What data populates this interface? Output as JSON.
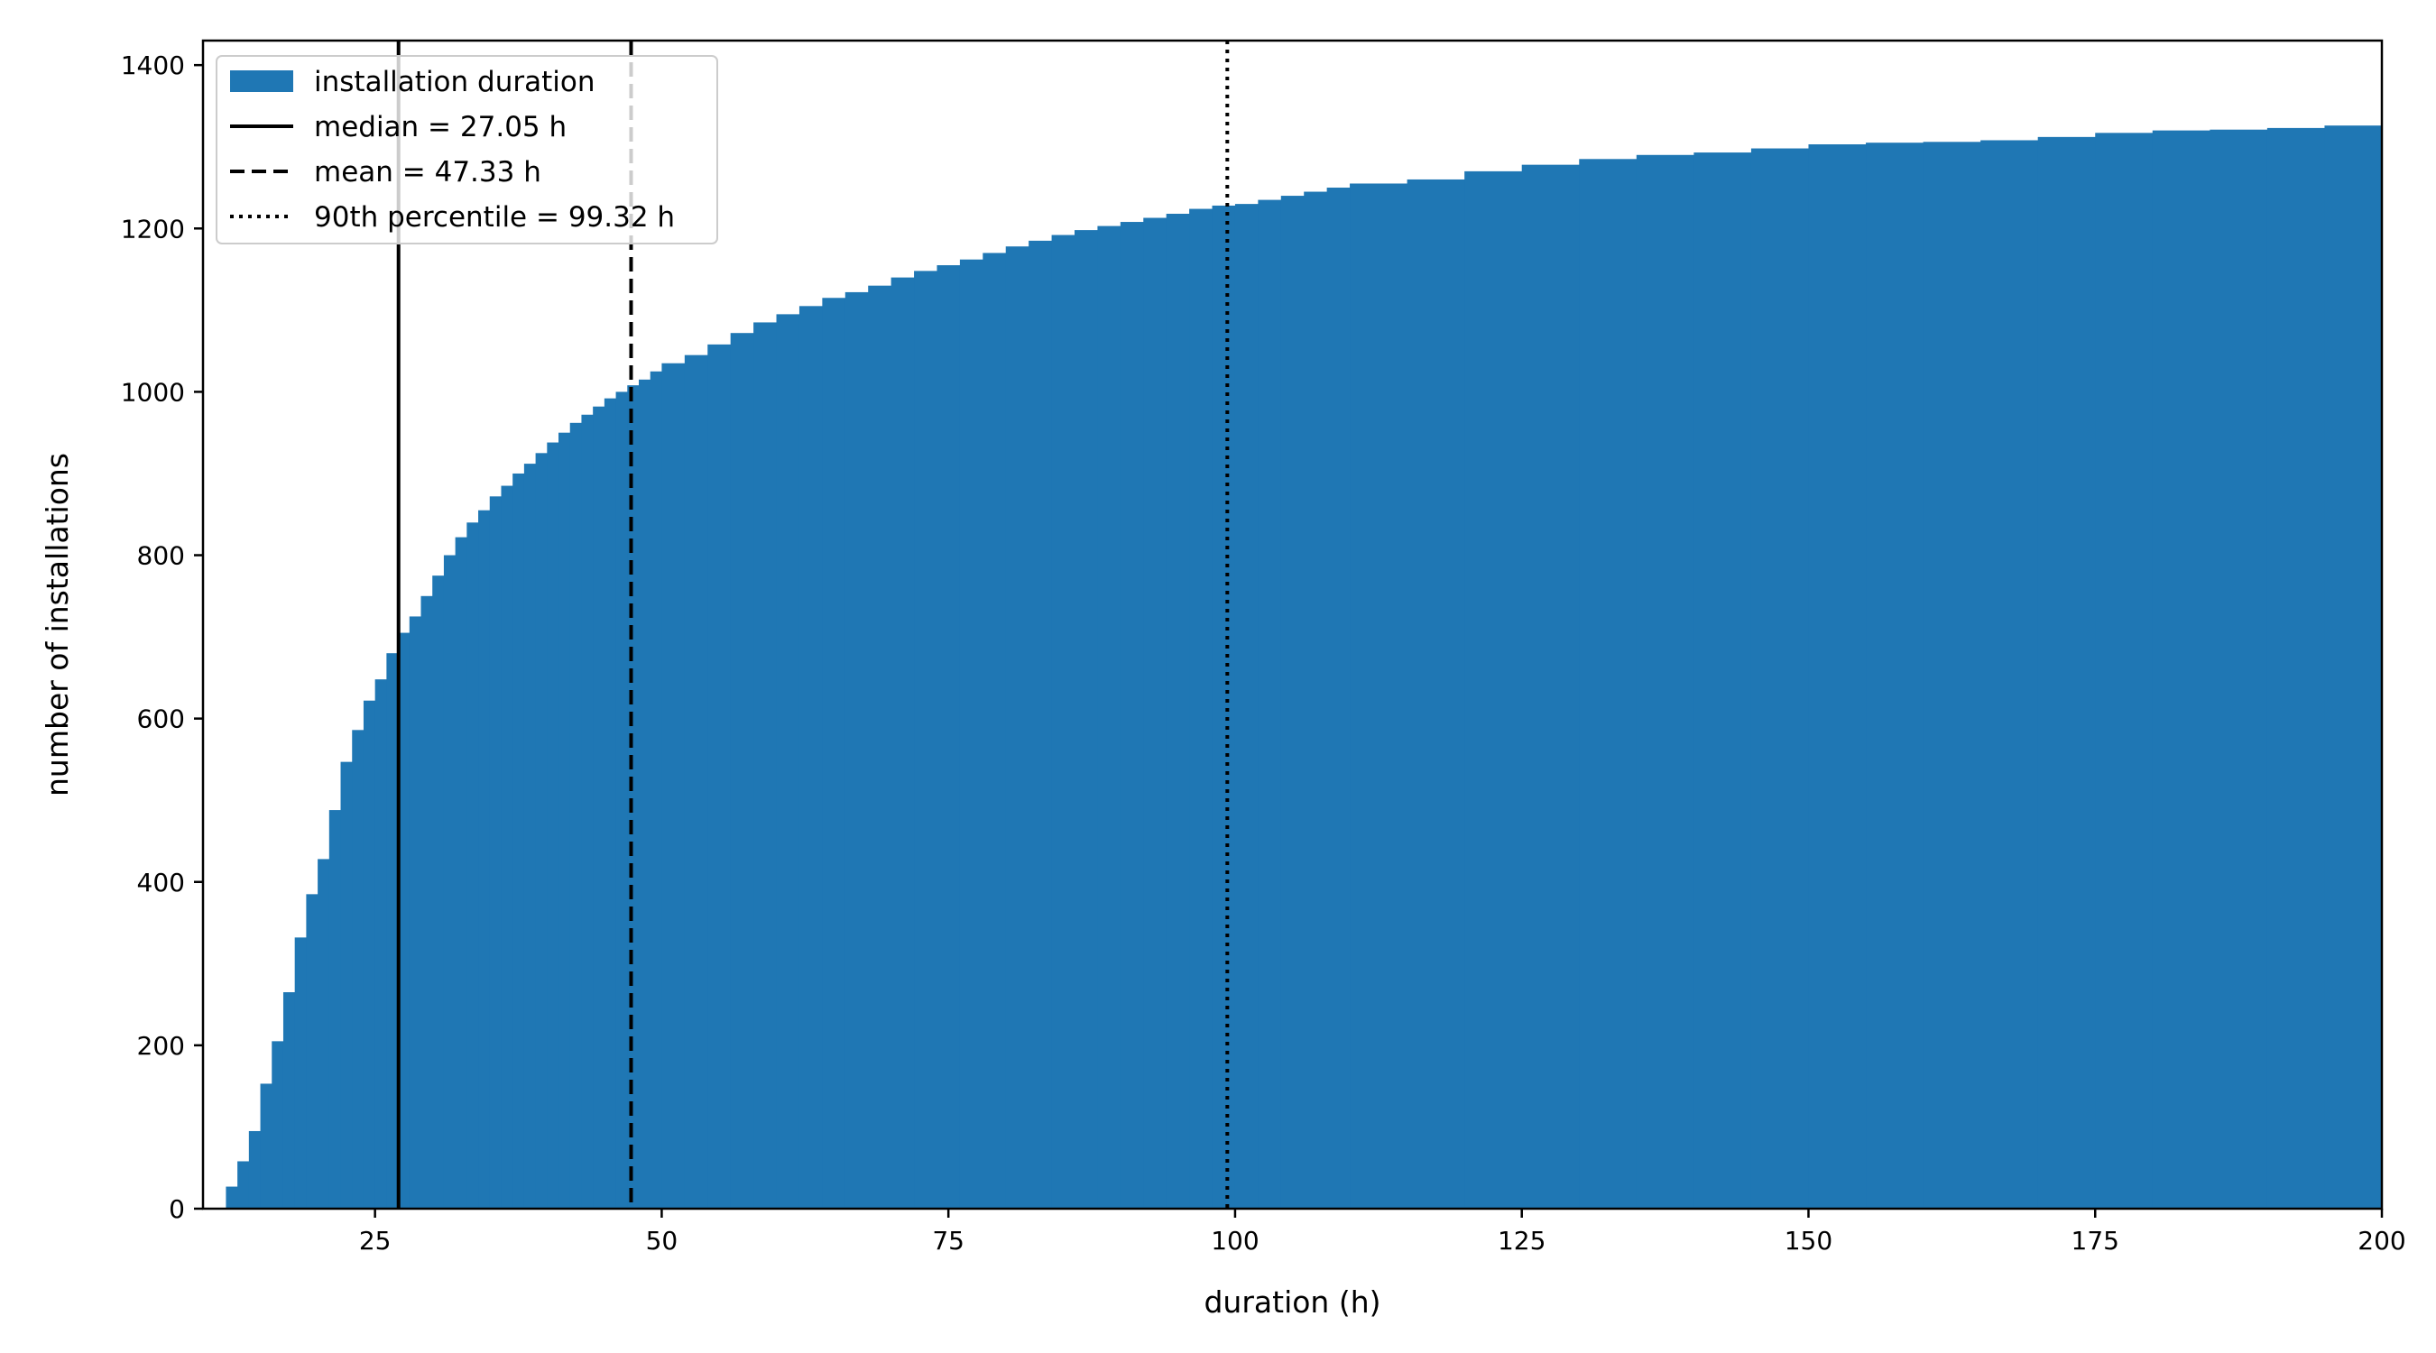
{
  "chart_data": {
    "type": "bar",
    "subtype": "cumulative-histogram",
    "title": "",
    "xlabel": "duration (h)",
    "ylabel": "number of installations",
    "xlim": [
      10,
      200
    ],
    "ylim": [
      0,
      1430
    ],
    "xticks": [
      25,
      50,
      75,
      100,
      125,
      150,
      175,
      200
    ],
    "yticks": [
      0,
      200,
      400,
      600,
      800,
      1000,
      1200,
      1400
    ],
    "grid": false,
    "legend_position": "top-left",
    "colors": {
      "bars": "#1f77b4",
      "lines": "#000000"
    },
    "series": [
      {
        "name": "installation duration",
        "bin_width": 1,
        "x": [
          12,
          13,
          14,
          15,
          16,
          17,
          18,
          19,
          20,
          21,
          22,
          23,
          24,
          25,
          26,
          27,
          28,
          29,
          30,
          31,
          32,
          33,
          34,
          35,
          36,
          37,
          38,
          39,
          40,
          41,
          42,
          43,
          44,
          45,
          46,
          47,
          48,
          49,
          50,
          52,
          54,
          56,
          58,
          60,
          62,
          64,
          66,
          68,
          70,
          72,
          74,
          76,
          78,
          80,
          82,
          84,
          86,
          88,
          90,
          92,
          94,
          96,
          98,
          100,
          102,
          104,
          106,
          108,
          110,
          115,
          120,
          125,
          130,
          135,
          140,
          145,
          150,
          155,
          160,
          165,
          170,
          175,
          180,
          185,
          190,
          195,
          200
        ],
        "values": [
          27,
          58,
          95,
          153,
          205,
          265,
          332,
          385,
          428,
          488,
          547,
          586,
          622,
          648,
          680,
          705,
          725,
          750,
          775,
          800,
          822,
          840,
          855,
          872,
          885,
          900,
          912,
          925,
          938,
          950,
          962,
          972,
          982,
          992,
          1000,
          1008,
          1015,
          1025,
          1035,
          1045,
          1058,
          1072,
          1085,
          1095,
          1105,
          1115,
          1122,
          1130,
          1140,
          1148,
          1155,
          1162,
          1170,
          1178,
          1185,
          1192,
          1198,
          1203,
          1208,
          1213,
          1218,
          1224,
          1228,
          1230,
          1235,
          1240,
          1245,
          1250,
          1255,
          1260,
          1270,
          1278,
          1285,
          1290,
          1293,
          1298,
          1303,
          1305,
          1306,
          1308,
          1312,
          1317,
          1320,
          1321,
          1323,
          1326,
          1330
        ]
      }
    ],
    "reference_lines": [
      {
        "label": "median = 27.05 h",
        "x": 27.05,
        "style": "solid"
      },
      {
        "label": "mean = 47.33 h",
        "x": 47.33,
        "style": "dashed"
      },
      {
        "label": "90th percentile = 99.32 h",
        "x": 99.32,
        "style": "dotted"
      }
    ]
  }
}
